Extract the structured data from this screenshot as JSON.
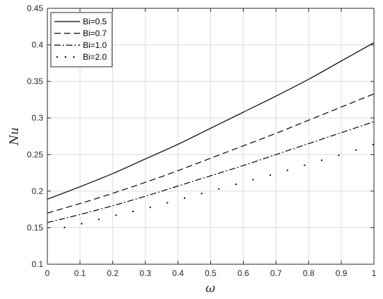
{
  "chart_data": {
    "type": "line",
    "title": "",
    "xlabel": "ω",
    "ylabel": "Nu",
    "xlim": [
      0,
      1
    ],
    "ylim": [
      0.1,
      0.45
    ],
    "grid": true,
    "legend_position": "top-left",
    "xticks": [
      "0",
      "0.1",
      "0.2",
      "0.3",
      "0.4",
      "0.5",
      "0.6",
      "0.7",
      "0.8",
      "0.9",
      "1"
    ],
    "yticks": [
      "0.1",
      "0.15",
      "0.2",
      "0.25",
      "0.3",
      "0.35",
      "0.4",
      "0.45"
    ],
    "x": [
      0,
      0.1,
      0.2,
      0.3,
      0.4,
      0.5,
      0.6,
      0.7,
      0.8,
      0.9,
      1.0
    ],
    "series": [
      {
        "name": "Bi=0.5",
        "style": "solid",
        "values": [
          0.189,
          0.206,
          0.224,
          0.244,
          0.264,
          0.286,
          0.308,
          0.33,
          0.353,
          0.378,
          0.403
        ]
      },
      {
        "name": "Bi=0.7",
        "style": "dashed",
        "values": [
          0.17,
          0.183,
          0.197,
          0.212,
          0.228,
          0.245,
          0.262,
          0.279,
          0.297,
          0.315,
          0.333
        ]
      },
      {
        "name": "Bi=1.0",
        "style": "dashdot",
        "values": [
          0.157,
          0.168,
          0.18,
          0.193,
          0.207,
          0.221,
          0.235,
          0.25,
          0.265,
          0.28,
          0.295
        ]
      },
      {
        "name": "Bi=2.0",
        "style": "dotted",
        "values": [
          0.145,
          0.155,
          0.166,
          0.176,
          0.188,
          0.2,
          0.212,
          0.224,
          0.237,
          0.25,
          0.264
        ]
      }
    ]
  }
}
